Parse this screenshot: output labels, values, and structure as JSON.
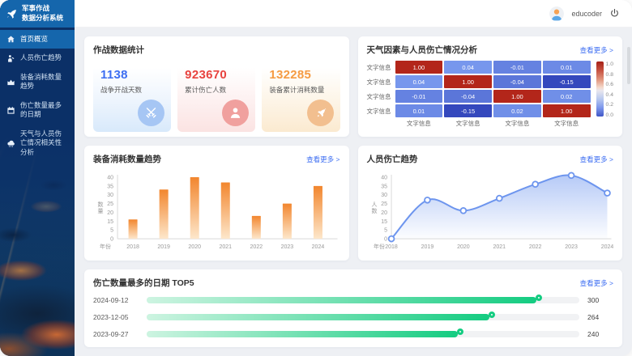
{
  "app": {
    "logo_line1": "军事作战",
    "logo_line2": "数据分析系统"
  },
  "header": {
    "username": "educoder"
  },
  "ui": {
    "view_more": "查看更多 >"
  },
  "sidebar": {
    "items": [
      {
        "label": "首页概览",
        "icon": "home",
        "active": true
      },
      {
        "label": "人员伤亡趋势",
        "icon": "person_trend",
        "active": false
      },
      {
        "label": "装备消耗数量趋势",
        "icon": "area_chart",
        "active": false
      },
      {
        "label": "伤亡数量最多的日期",
        "icon": "calendar",
        "active": false
      },
      {
        "label": "天气与人员伤亡情况相关性分析",
        "icon": "weather",
        "active": false
      }
    ]
  },
  "stats": {
    "title": "作战数据统计",
    "cards": [
      {
        "value": "1138",
        "label": "战争开战天数",
        "color": "#3d6ef2",
        "icon": "swords",
        "icon_bg": "#a6c6f4"
      },
      {
        "value": "923670",
        "label": "累计伤亡人数",
        "color": "#e8433f",
        "icon": "person",
        "icon_bg": "#f0a09e"
      },
      {
        "value": "132285",
        "label": "装备累计消耗数量",
        "color": "#f59b43",
        "icon": "rocket",
        "icon_bg": "#f2bf8f"
      }
    ]
  },
  "chart_data": [
    {
      "id": "weather_corr_heatmap",
      "type": "heatmap",
      "title": "天气因素与人员伤亡情况分析",
      "row_labels": [
        "文字信息",
        "文字信息",
        "文字信息",
        "文字信息"
      ],
      "col_labels": [
        "文字信息",
        "文字信息",
        "文字信息",
        "文字信息"
      ],
      "values": [
        [
          1.0,
          0.04,
          -0.01,
          0.01
        ],
        [
          0.04,
          1.0,
          -0.04,
          -0.15
        ],
        [
          -0.01,
          -0.04,
          1.0,
          0.02
        ],
        [
          0.01,
          -0.15,
          0.02,
          1.0
        ]
      ],
      "colorbar_ticks": [
        "1.0",
        "0.8",
        "0.6",
        "0.4",
        "0.2",
        "0.0"
      ],
      "colors": {
        "high": "#b3261a",
        "low": "#3448bd"
      }
    },
    {
      "id": "equipment_consumption_bar",
      "type": "bar",
      "title": "装备消耗数量趋势",
      "categories": [
        "2018",
        "2019",
        "2020",
        "2021",
        "2022",
        "2023",
        "2024"
      ],
      "values": [
        16,
        33,
        40,
        37,
        18,
        25,
        35
      ],
      "xlabel": "年份",
      "ylabel": "数量",
      "y_ticks": [
        0,
        5,
        15,
        20,
        25,
        30,
        35,
        40
      ],
      "bar_color_top": "#f2862e",
      "bar_color_bottom": "#fde7cb",
      "legend": "none",
      "grid": false
    },
    {
      "id": "casualty_trend_line",
      "type": "line",
      "title": "人员伤亡趋势",
      "categories": [
        "2018",
        "2019",
        "2020",
        "2021",
        "2022",
        "2023",
        "2024"
      ],
      "values": [
        0,
        27,
        21,
        28,
        36,
        41,
        31
      ],
      "xlabel": "年份",
      "ylabel": "人数",
      "y_ticks": [
        0,
        5,
        15,
        20,
        25,
        30,
        35,
        40
      ],
      "line_color": "#6d95ee",
      "area": true,
      "smooth": true,
      "legend": "none",
      "grid": false
    },
    {
      "id": "top5_casualty_dates",
      "type": "bar",
      "orientation": "horizontal",
      "title": "伤亡数量最多的日期 TOP5",
      "categories": [
        "2024-09-12",
        "2023-12-05",
        "2023-09-27"
      ],
      "values": [
        300,
        264,
        240
      ],
      "bar_color": "#14cc81"
    }
  ]
}
